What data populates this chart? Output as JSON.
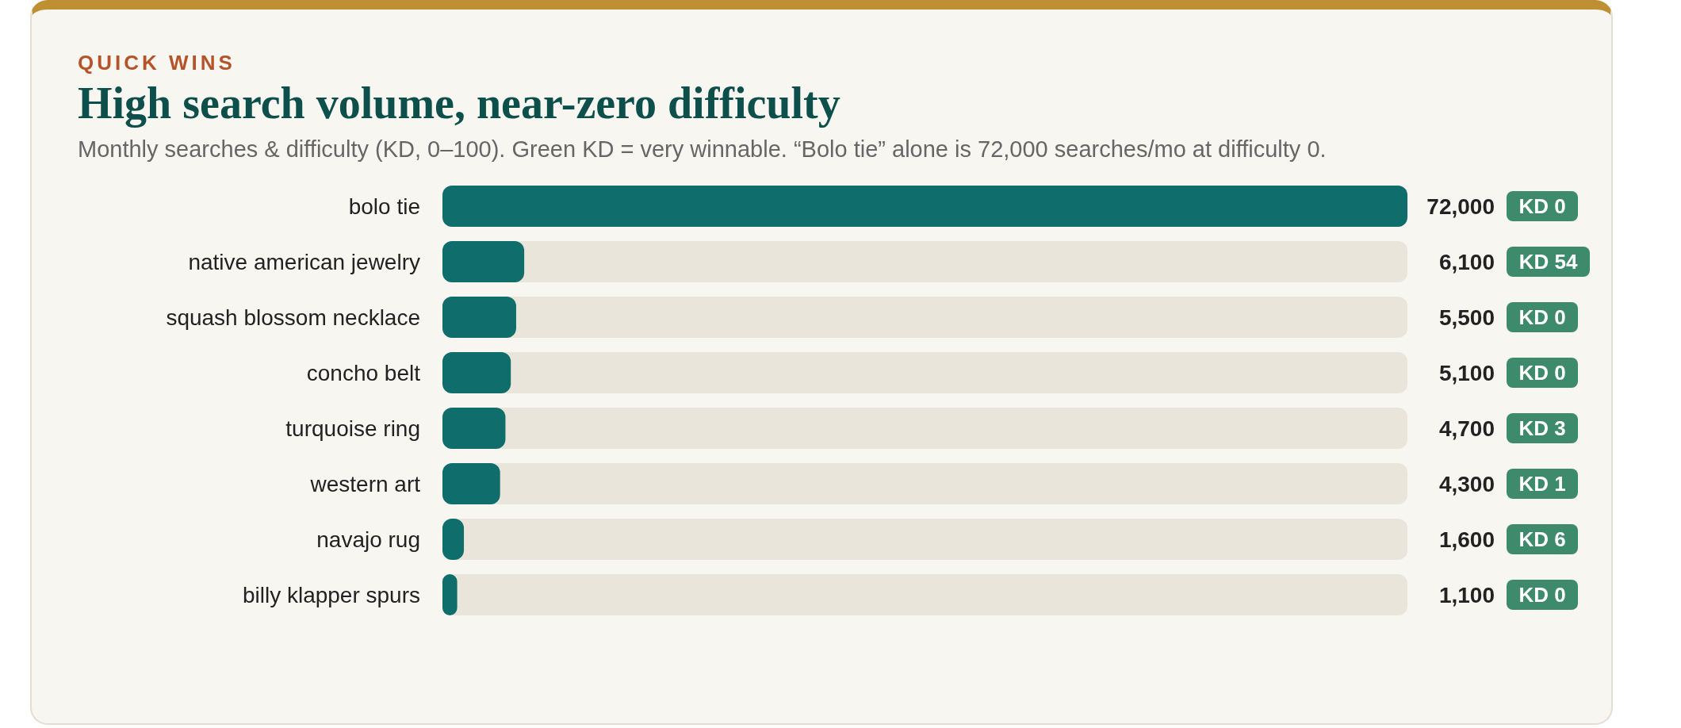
{
  "chart_data": {
    "type": "bar",
    "orientation": "horizontal",
    "title": "High search volume, near-zero difficulty",
    "subtitle": "Monthly searches & difficulty (KD, 0–100). Green KD = very winnable. “Bolo tie” alone is 72,000 searches/mo at difficulty 0.",
    "annotations": [
      "QUICK WINS",
      "KD 0",
      "KD 54",
      "KD 0",
      "KD 0",
      "KD 3",
      "KD 1",
      "KD 6",
      "KD 0"
    ],
    "categories": [
      "bolo tie",
      "native american jewelry",
      "squash blossom necklace",
      "concho belt",
      "turquoise ring",
      "western art",
      "navajo rug",
      "billy klapper spurs"
    ],
    "series": [
      {
        "color": "#0f6e6c",
        "values": [
          72000,
          6100,
          5500,
          5100,
          4700,
          4300,
          1600,
          1100
        ],
        "value_labels": [
          "72,000",
          "6,100",
          "5,500",
          "5,100",
          "4,700",
          "4,300",
          "1,600",
          "1,100"
        ]
      }
    ]
  }
}
